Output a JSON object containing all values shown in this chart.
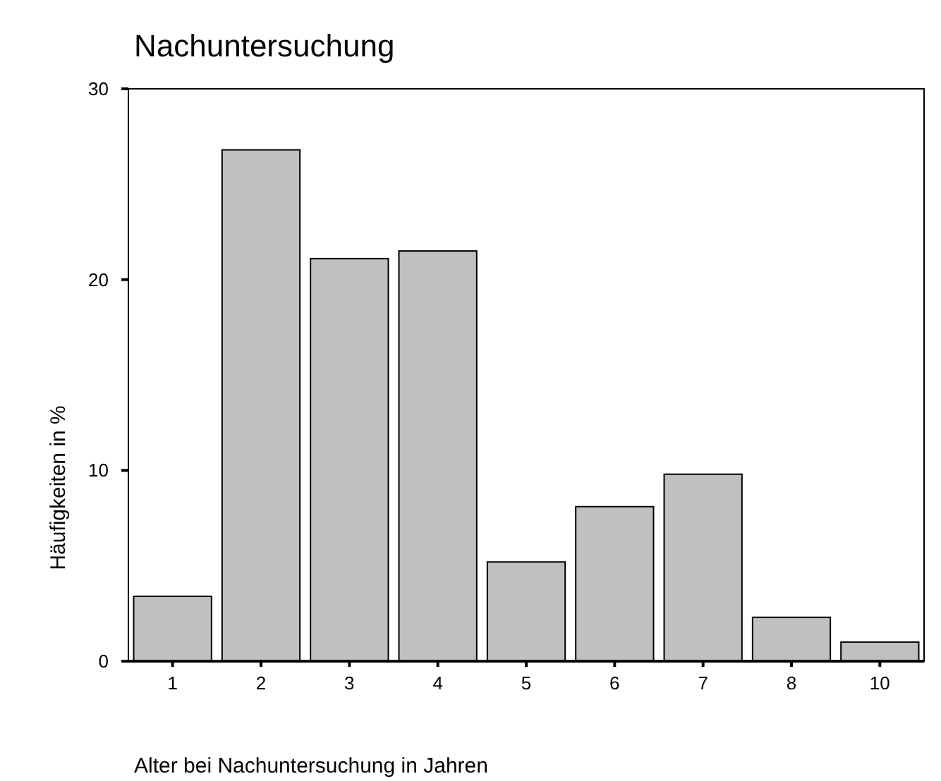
{
  "chart_data": {
    "type": "bar",
    "title": "Nachuntersuchung",
    "xlabel": "Alter bei Nachuntersuchung in Jahren",
    "ylabel": "Häufigkeiten in %",
    "categories": [
      "1",
      "2",
      "3",
      "4",
      "5",
      "6",
      "7",
      "8",
      "10"
    ],
    "values": [
      3.4,
      26.8,
      21.1,
      21.5,
      5.2,
      8.1,
      9.8,
      2.3,
      1.0
    ],
    "color": "#c0c0c0",
    "ylim": [
      0,
      30
    ],
    "yticks": [
      0,
      10,
      20,
      30
    ],
    "grid": false
  }
}
